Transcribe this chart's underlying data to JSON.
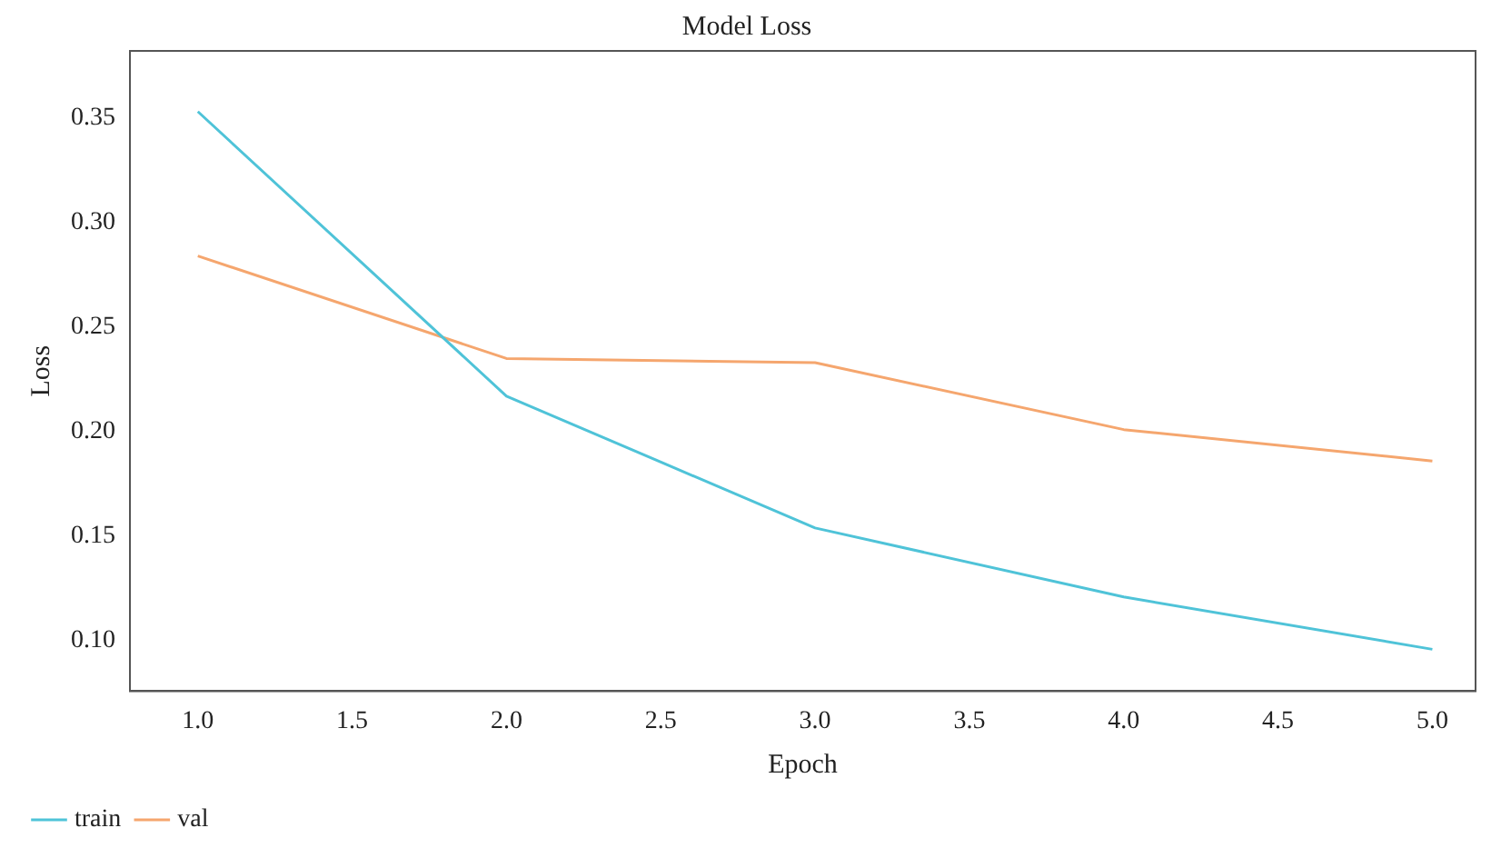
{
  "chart_data": {
    "type": "line",
    "title": "Model Loss",
    "xlabel": "Epoch",
    "ylabel": "Loss",
    "x": [
      1,
      2,
      3,
      4,
      5
    ],
    "series": [
      {
        "name": "train",
        "color": "#4fc3d8",
        "values": [
          0.353,
          0.217,
          0.154,
          0.121,
          0.096
        ]
      },
      {
        "name": "val",
        "color": "#f5a66e",
        "values": [
          0.284,
          0.235,
          0.233,
          0.201,
          0.186
        ]
      }
    ],
    "xlim": [
      0.78,
      5.14
    ],
    "xticks": [
      {
        "value": 1,
        "label": "1.0"
      },
      {
        "value": 1.5,
        "label": "1.5"
      },
      {
        "value": 2,
        "label": "2.0"
      },
      {
        "value": 2.5,
        "label": "2.5"
      },
      {
        "value": 3,
        "label": "3.0"
      },
      {
        "value": 3.5,
        "label": "3.5"
      },
      {
        "value": 4,
        "label": "4.0"
      },
      {
        "value": 4.5,
        "label": "4.5"
      },
      {
        "value": 5,
        "label": "5.0"
      }
    ],
    "ylim": [
      0.076,
      0.382
    ],
    "yticks": [
      {
        "value": 0.1,
        "label": "0.10"
      },
      {
        "value": 0.15,
        "label": "0.15"
      },
      {
        "value": 0.2,
        "label": "0.20"
      },
      {
        "value": 0.25,
        "label": "0.25"
      },
      {
        "value": 0.3,
        "label": "0.30"
      },
      {
        "value": 0.35,
        "label": "0.35"
      }
    ],
    "grid": false,
    "legend": "bottom",
    "marker": "none",
    "line_style": "solid"
  }
}
